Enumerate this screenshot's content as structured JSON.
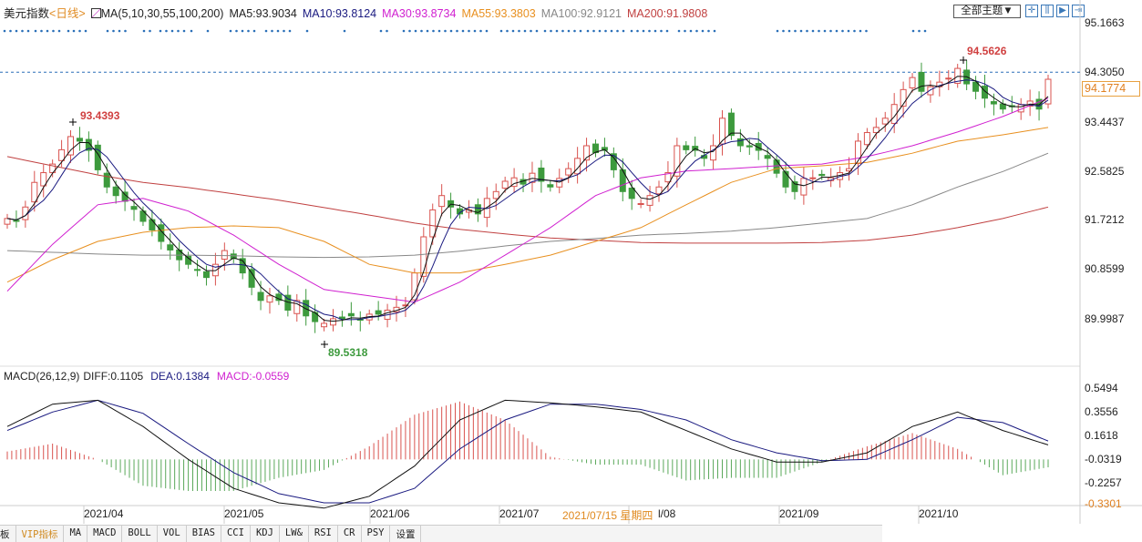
{
  "header": {
    "symbol": "美元指数",
    "period": "<日线>",
    "ma_label": "MA(5,10,30,55,100,200)",
    "ma5": "MA5:93.9034",
    "ma10": "MA10:93.8124",
    "ma30": "MA30:93.8734",
    "ma55": "MA55:93.3803",
    "ma100": "MA100:92.9121",
    "ma200": "MA200:91.9808"
  },
  "toolbar": {
    "theme": "全部主题▼",
    "buttons": [
      "crosshair",
      "zoom-bar",
      "play-forward",
      "exit"
    ]
  },
  "colors": {
    "up": "#d9534f",
    "down": "#3d9a3d",
    "ma5": "#111111",
    "ma10": "#1a1a80",
    "ma30": "#d020d0",
    "ma55": "#e89020",
    "ma100": "#888888",
    "ma200": "#c04040",
    "diff": "#111111",
    "dea": "#1a1a80",
    "events": "#2a6fb8"
  },
  "price_axis": {
    "labels": [
      "95.1663",
      "94.3050",
      "93.4437",
      "92.5825",
      "91.7212",
      "90.8599",
      "89.9987"
    ],
    "current": "94.1774"
  },
  "annotations": {
    "high_left": "93.4393",
    "high_right": "94.5626",
    "low": "89.5318"
  },
  "macd_header": {
    "label": "MACD(26,12,9)",
    "diff": "DIFF:0.1105",
    "dea": "DEA:0.1384",
    "macd": "MACD:-0.0559"
  },
  "macd_axis": [
    "0.5494",
    "0.3556",
    "0.1618",
    "-0.0319",
    "-0.2257",
    "-0.3301"
  ],
  "x_axis": {
    "labels": [
      "2021/04",
      "2021/05",
      "2021/06",
      "2021/07",
      "l/08",
      "2021/09",
      "2021/10"
    ],
    "cursor": "2021/07/15 星期四"
  },
  "tabs": [
    "板",
    "VIP指标",
    "MA",
    "MACD",
    "BOLL",
    "VOL",
    "BIAS",
    "CCI",
    "KDJ",
    "LW&",
    "RSI",
    "CR",
    "PSY",
    "设置"
  ],
  "chart_data": {
    "type": "candlestick",
    "closes": [
      91.75,
      91.7,
      91.95,
      92.38,
      92.55,
      92.7,
      92.95,
      93.18,
      93.1,
      92.94,
      92.6,
      92.3,
      92.15,
      92.05,
      91.91,
      91.7,
      91.55,
      91.35,
      91.2,
      91.03,
      90.95,
      90.85,
      90.72,
      90.95,
      91.19,
      91.05,
      90.8,
      90.55,
      90.32,
      90.4,
      90.32,
      90.15,
      90.32,
      90.05,
      89.95,
      89.92,
      90.0,
      90.0,
      90.05,
      89.98,
      90.08,
      90.08,
      90.15,
      90.2,
      90.24,
      90.8,
      91.43,
      91.9,
      92.15,
      91.95,
      91.83,
      91.9,
      91.83,
      92.1,
      92.22,
      92.4,
      92.46,
      92.35,
      92.54,
      92.4,
      92.3,
      92.45,
      92.62,
      92.8,
      93.02,
      92.9,
      92.94,
      92.6,
      92.22,
      92.1,
      92.01,
      92.15,
      92.3,
      92.55,
      93.02,
      92.95,
      92.94,
      92.8,
      93.02,
      93.5,
      93.2,
      93.02,
      93.0,
      92.94,
      92.8,
      92.54,
      92.3,
      92.22,
      92.45,
      92.46,
      92.5,
      92.46,
      92.55,
      92.62,
      93.1,
      93.25,
      93.34,
      93.5,
      93.74,
      94.0,
      94.21,
      93.97,
      94.05,
      94.13,
      94.2,
      94.37,
      94.1,
      93.97,
      93.85,
      93.75,
      93.66,
      93.7,
      93.74,
      93.8,
      93.66,
      94.18
    ],
    "ma30": [
      90.48,
      91.3,
      91.99,
      92.1,
      91.88,
      91.46,
      90.95,
      90.51,
      90.4,
      90.29,
      90.64,
      91.11,
      91.59,
      92.15,
      92.46,
      92.58,
      92.62,
      92.67,
      92.7,
      92.83,
      93.02,
      93.26,
      93.53,
      93.85
    ],
    "ma55": [
      90.64,
      91.03,
      91.35,
      91.51,
      91.59,
      91.62,
      91.59,
      91.35,
      90.95,
      90.8,
      90.8,
      90.95,
      91.11,
      91.35,
      91.59,
      91.99,
      92.38,
      92.62,
      92.67,
      92.73,
      92.89,
      93.1,
      93.21,
      93.34
    ],
    "ma100": [
      91.19,
      91.16,
      91.13,
      91.11,
      91.11,
      91.1,
      91.08,
      91.07,
      91.08,
      91.11,
      91.18,
      91.27,
      91.35,
      91.4,
      91.46,
      91.49,
      91.53,
      91.59,
      91.67,
      91.75,
      91.99,
      92.3,
      92.57,
      92.89
    ],
    "ma200": [
      92.83,
      92.67,
      92.51,
      92.38,
      92.29,
      92.18,
      92.07,
      91.94,
      91.81,
      91.67,
      91.56,
      91.48,
      91.41,
      91.37,
      91.33,
      91.32,
      91.32,
      91.32,
      91.33,
      91.37,
      91.46,
      91.59,
      91.75,
      91.95
    ],
    "macd_diff": [
      0.25,
      0.42,
      0.45,
      0.25,
      0.0,
      -0.22,
      -0.33,
      -0.37,
      -0.28,
      -0.05,
      0.3,
      0.45,
      0.43,
      0.4,
      0.36,
      0.22,
      0.08,
      -0.02,
      -0.02,
      0.05,
      0.25,
      0.36,
      0.22,
      0.11
    ],
    "macd_dea": [
      0.22,
      0.36,
      0.45,
      0.35,
      0.12,
      -0.1,
      -0.26,
      -0.33,
      -0.33,
      -0.22,
      0.08,
      0.3,
      0.42,
      0.42,
      0.38,
      0.3,
      0.15,
      0.05,
      -0.01,
      0.0,
      0.15,
      0.32,
      0.28,
      0.14
    ],
    "ylim": [
      89.9987,
      95.1663
    ],
    "macd_ylim": [
      -0.3301,
      0.5494
    ]
  }
}
